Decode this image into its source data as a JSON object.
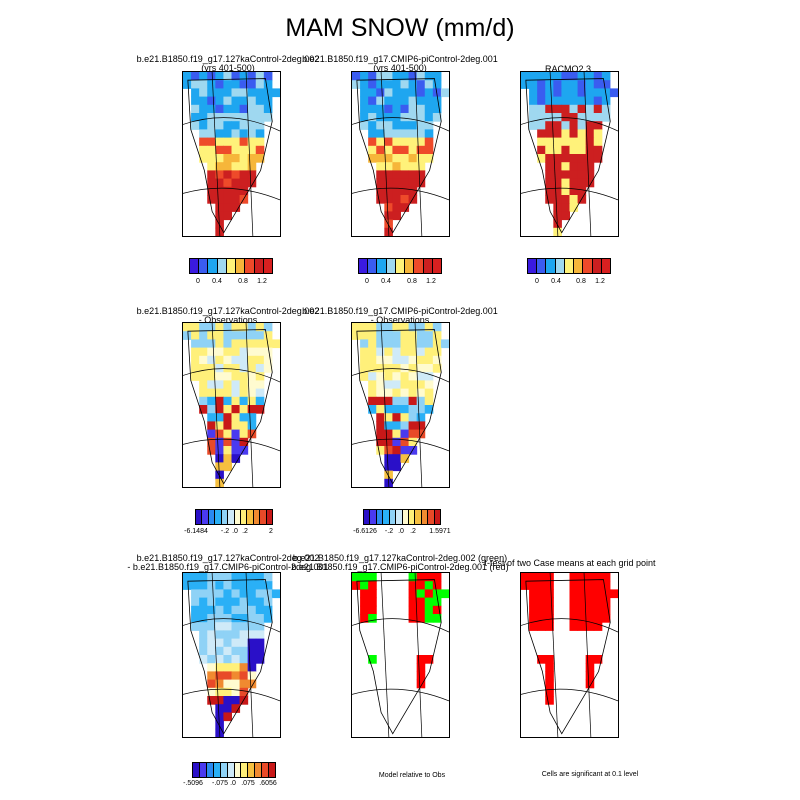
{
  "title": "MAM SNOW (mm/d)",
  "colors": {
    "abs": [
      "#3a1ae0",
      "#3a5cf0",
      "#1ea6f0",
      "#9fd8f0",
      "#fff27a",
      "#f6b63a",
      "#ee4a2a",
      "#cc1f20",
      "#d82020"
    ],
    "diff": [
      "#2a10c8",
      "#4a3af0",
      "#2a8af0",
      "#2ab0f6",
      "#8fd2f6",
      "#cfeaf8",
      "#fffbd0",
      "#fff07a",
      "#f6c040",
      "#f08a30",
      "#e84a28",
      "#c81818"
    ],
    "green": "#00ff00",
    "red": "#ff0000"
  },
  "panels": [
    {
      "title1": "b.e21.B1850.f19_g17.127kaControl-2deg.002",
      "title2": "(yrs 401-500)"
    },
    {
      "title1": "b.e21.B1850.f19_g17.CMIP6-piControl-2deg.001",
      "title2": "(yrs 401-500)"
    },
    {
      "title1": "RACMO2.3",
      "title2": ""
    },
    {
      "title1": "b.e21.B1850.f19_g17.127kaControl-2deg.002",
      "title2": "- Observations"
    },
    {
      "title1": "b.e21.B1850.f19_g17.CMIP6-piControl-2deg.001",
      "title2": "- Observations"
    },
    {
      "title1": "b.e21.B1850.f19_g17.127kaControl-2deg.002",
      "title2": "- b.e21.B1850.f19_g17.CMIP6-piControl-2deg.001"
    },
    {
      "title1": "b.e21.B1850.f19_g17.127kaControl-2deg.002 (green)",
      "title2": "b.e21.B1850.f19_g17.CMIP6-piControl-2deg.001 (red)"
    },
    {
      "title1": "t-test of two Case means at each grid point",
      "title2": ""
    }
  ],
  "colorbars": {
    "row1": [
      "0",
      "0.4",
      "0.8",
      "1.2"
    ],
    "row2_a": [
      "-6.1484",
      "-.2",
      ".0",
      ".2",
      "2"
    ],
    "row2_b": [
      "-6.6126",
      "-.2",
      ".0",
      ".2",
      "1.5971"
    ],
    "row3": [
      "-.5096",
      "-.075",
      ".0",
      ".075",
      ".6056"
    ]
  },
  "captions": {
    "model_relative": "Model relative to Obs",
    "significance": "Cells are significant at 0.1 level"
  }
}
